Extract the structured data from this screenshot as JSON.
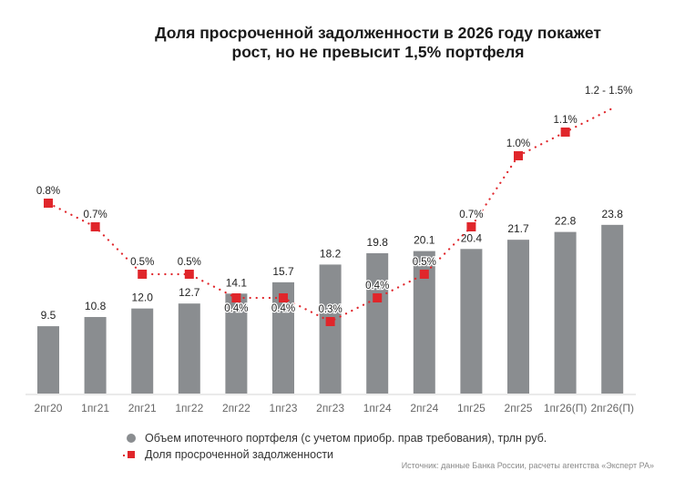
{
  "title_line1": "Доля просроченной задолженности в 2026 году покажет",
  "title_line2": "рост, но не превысит 1,5% портфеля",
  "chart_data": {
    "type": "bar+line",
    "categories": [
      "2пг20",
      "1пг21",
      "2пг21",
      "1пг22",
      "2пг22",
      "1пг23",
      "2пг23",
      "1пг24",
      "2пг24",
      "1пг25",
      "2пг25",
      "1пг26(П)",
      "2пг26(П)"
    ],
    "series": [
      {
        "name": "Объем ипотечного портфеля (с учетом приобр. прав требования), трлн руб.",
        "type": "bar",
        "color": "#8a8d90",
        "values": [
          9.5,
          10.8,
          12.0,
          12.7,
          14.1,
          15.7,
          18.2,
          19.8,
          20.1,
          20.4,
          21.7,
          22.8,
          23.8
        ],
        "labels": [
          "9.5",
          "10.8",
          "12.0",
          "12.7",
          "14.1",
          "15.7",
          "18.2",
          "19.8",
          "20.1",
          "20.4",
          "21.7",
          "22.8",
          "23.8"
        ]
      },
      {
        "name": "Доля просроченной задолженности",
        "type": "line",
        "style": "dotted",
        "marker": "square",
        "color": "#e0262b",
        "values": [
          0.8,
          0.7,
          0.5,
          0.5,
          0.4,
          0.4,
          0.3,
          0.4,
          0.5,
          0.7,
          1.0,
          1.1,
          1.2
        ],
        "labels": [
          "0.8%",
          "0.7%",
          "0.5%",
          "0.5%",
          "0.4%",
          "0.4%",
          "0.3%",
          "0.4%",
          "0.5%",
          "0.7%",
          "1.0%",
          "1.1%",
          "1.2 - 1.5%"
        ],
        "forecast_range_last": [
          1.2,
          1.5
        ]
      }
    ],
    "grid": false,
    "legend_placement": "bottom-left"
  },
  "legend": {
    "bar_label": "Объем ипотечного портфеля (с учетом приобр. прав требования), трлн руб.",
    "line_label": "Доля просроченной задолженности"
  },
  "source": "Источник: данные Банка России, расчеты агентства «Эксперт РА»"
}
